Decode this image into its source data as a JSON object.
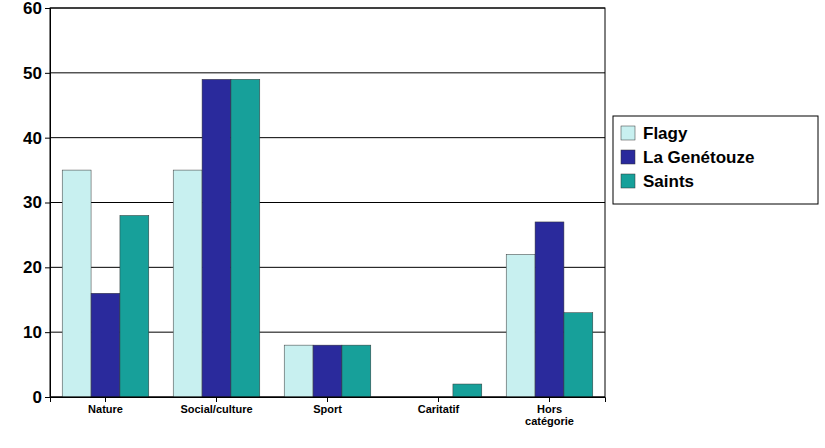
{
  "chart_data": {
    "type": "bar",
    "categories": [
      "Nature",
      "Social/culture",
      "Sport",
      "Caritatif",
      "Hors catégorie"
    ],
    "series": [
      {
        "name": "Flagy",
        "color": "#c8f0f0",
        "values": [
          35,
          35,
          8,
          0,
          22
        ]
      },
      {
        "name": "La Genétouze",
        "color": "#2a2a9c",
        "values": [
          16,
          49,
          8,
          0,
          27
        ]
      },
      {
        "name": "Saints",
        "color": "#17a09a",
        "values": [
          28,
          49,
          8,
          2,
          13
        ]
      }
    ],
    "ylim": [
      0,
      60
    ],
    "yticks": [
      0,
      10,
      20,
      30,
      40,
      50,
      60
    ],
    "grid": true,
    "legend": "right"
  }
}
